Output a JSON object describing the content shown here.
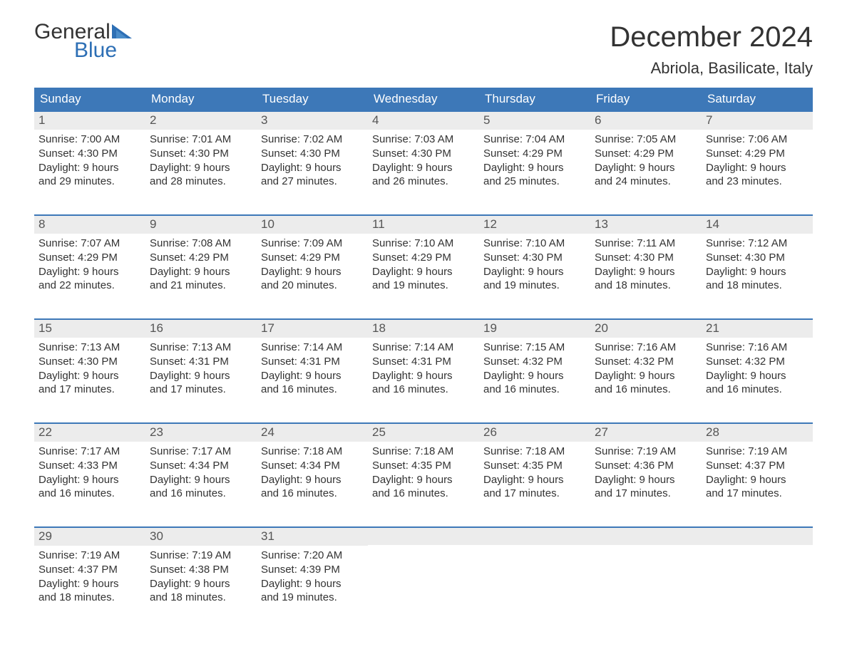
{
  "brand": {
    "part1": "General",
    "part2": "Blue",
    "text_color": "#333333",
    "accent_color": "#2d6fb5"
  },
  "title": "December 2024",
  "location": "Abriola, Basilicate, Italy",
  "header_bg": "#3d78b8",
  "daynum_bg": "#ececec",
  "weekdays": [
    "Sunday",
    "Monday",
    "Tuesday",
    "Wednesday",
    "Thursday",
    "Friday",
    "Saturday"
  ],
  "weeks": [
    [
      {
        "n": "1",
        "sr": "Sunrise: 7:00 AM",
        "ss": "Sunset: 4:30 PM",
        "d1": "Daylight: 9 hours",
        "d2": "and 29 minutes."
      },
      {
        "n": "2",
        "sr": "Sunrise: 7:01 AM",
        "ss": "Sunset: 4:30 PM",
        "d1": "Daylight: 9 hours",
        "d2": "and 28 minutes."
      },
      {
        "n": "3",
        "sr": "Sunrise: 7:02 AM",
        "ss": "Sunset: 4:30 PM",
        "d1": "Daylight: 9 hours",
        "d2": "and 27 minutes."
      },
      {
        "n": "4",
        "sr": "Sunrise: 7:03 AM",
        "ss": "Sunset: 4:30 PM",
        "d1": "Daylight: 9 hours",
        "d2": "and 26 minutes."
      },
      {
        "n": "5",
        "sr": "Sunrise: 7:04 AM",
        "ss": "Sunset: 4:29 PM",
        "d1": "Daylight: 9 hours",
        "d2": "and 25 minutes."
      },
      {
        "n": "6",
        "sr": "Sunrise: 7:05 AM",
        "ss": "Sunset: 4:29 PM",
        "d1": "Daylight: 9 hours",
        "d2": "and 24 minutes."
      },
      {
        "n": "7",
        "sr": "Sunrise: 7:06 AM",
        "ss": "Sunset: 4:29 PM",
        "d1": "Daylight: 9 hours",
        "d2": "and 23 minutes."
      }
    ],
    [
      {
        "n": "8",
        "sr": "Sunrise: 7:07 AM",
        "ss": "Sunset: 4:29 PM",
        "d1": "Daylight: 9 hours",
        "d2": "and 22 minutes."
      },
      {
        "n": "9",
        "sr": "Sunrise: 7:08 AM",
        "ss": "Sunset: 4:29 PM",
        "d1": "Daylight: 9 hours",
        "d2": "and 21 minutes."
      },
      {
        "n": "10",
        "sr": "Sunrise: 7:09 AM",
        "ss": "Sunset: 4:29 PM",
        "d1": "Daylight: 9 hours",
        "d2": "and 20 minutes."
      },
      {
        "n": "11",
        "sr": "Sunrise: 7:10 AM",
        "ss": "Sunset: 4:29 PM",
        "d1": "Daylight: 9 hours",
        "d2": "and 19 minutes."
      },
      {
        "n": "12",
        "sr": "Sunrise: 7:10 AM",
        "ss": "Sunset: 4:30 PM",
        "d1": "Daylight: 9 hours",
        "d2": "and 19 minutes."
      },
      {
        "n": "13",
        "sr": "Sunrise: 7:11 AM",
        "ss": "Sunset: 4:30 PM",
        "d1": "Daylight: 9 hours",
        "d2": "and 18 minutes."
      },
      {
        "n": "14",
        "sr": "Sunrise: 7:12 AM",
        "ss": "Sunset: 4:30 PM",
        "d1": "Daylight: 9 hours",
        "d2": "and 18 minutes."
      }
    ],
    [
      {
        "n": "15",
        "sr": "Sunrise: 7:13 AM",
        "ss": "Sunset: 4:30 PM",
        "d1": "Daylight: 9 hours",
        "d2": "and 17 minutes."
      },
      {
        "n": "16",
        "sr": "Sunrise: 7:13 AM",
        "ss": "Sunset: 4:31 PM",
        "d1": "Daylight: 9 hours",
        "d2": "and 17 minutes."
      },
      {
        "n": "17",
        "sr": "Sunrise: 7:14 AM",
        "ss": "Sunset: 4:31 PM",
        "d1": "Daylight: 9 hours",
        "d2": "and 16 minutes."
      },
      {
        "n": "18",
        "sr": "Sunrise: 7:14 AM",
        "ss": "Sunset: 4:31 PM",
        "d1": "Daylight: 9 hours",
        "d2": "and 16 minutes."
      },
      {
        "n": "19",
        "sr": "Sunrise: 7:15 AM",
        "ss": "Sunset: 4:32 PM",
        "d1": "Daylight: 9 hours",
        "d2": "and 16 minutes."
      },
      {
        "n": "20",
        "sr": "Sunrise: 7:16 AM",
        "ss": "Sunset: 4:32 PM",
        "d1": "Daylight: 9 hours",
        "d2": "and 16 minutes."
      },
      {
        "n": "21",
        "sr": "Sunrise: 7:16 AM",
        "ss": "Sunset: 4:32 PM",
        "d1": "Daylight: 9 hours",
        "d2": "and 16 minutes."
      }
    ],
    [
      {
        "n": "22",
        "sr": "Sunrise: 7:17 AM",
        "ss": "Sunset: 4:33 PM",
        "d1": "Daylight: 9 hours",
        "d2": "and 16 minutes."
      },
      {
        "n": "23",
        "sr": "Sunrise: 7:17 AM",
        "ss": "Sunset: 4:34 PM",
        "d1": "Daylight: 9 hours",
        "d2": "and 16 minutes."
      },
      {
        "n": "24",
        "sr": "Sunrise: 7:18 AM",
        "ss": "Sunset: 4:34 PM",
        "d1": "Daylight: 9 hours",
        "d2": "and 16 minutes."
      },
      {
        "n": "25",
        "sr": "Sunrise: 7:18 AM",
        "ss": "Sunset: 4:35 PM",
        "d1": "Daylight: 9 hours",
        "d2": "and 16 minutes."
      },
      {
        "n": "26",
        "sr": "Sunrise: 7:18 AM",
        "ss": "Sunset: 4:35 PM",
        "d1": "Daylight: 9 hours",
        "d2": "and 17 minutes."
      },
      {
        "n": "27",
        "sr": "Sunrise: 7:19 AM",
        "ss": "Sunset: 4:36 PM",
        "d1": "Daylight: 9 hours",
        "d2": "and 17 minutes."
      },
      {
        "n": "28",
        "sr": "Sunrise: 7:19 AM",
        "ss": "Sunset: 4:37 PM",
        "d1": "Daylight: 9 hours",
        "d2": "and 17 minutes."
      }
    ],
    [
      {
        "n": "29",
        "sr": "Sunrise: 7:19 AM",
        "ss": "Sunset: 4:37 PM",
        "d1": "Daylight: 9 hours",
        "d2": "and 18 minutes."
      },
      {
        "n": "30",
        "sr": "Sunrise: 7:19 AM",
        "ss": "Sunset: 4:38 PM",
        "d1": "Daylight: 9 hours",
        "d2": "and 18 minutes."
      },
      {
        "n": "31",
        "sr": "Sunrise: 7:20 AM",
        "ss": "Sunset: 4:39 PM",
        "d1": "Daylight: 9 hours",
        "d2": "and 19 minutes."
      },
      {
        "empty": true
      },
      {
        "empty": true
      },
      {
        "empty": true
      },
      {
        "empty": true
      }
    ]
  ]
}
